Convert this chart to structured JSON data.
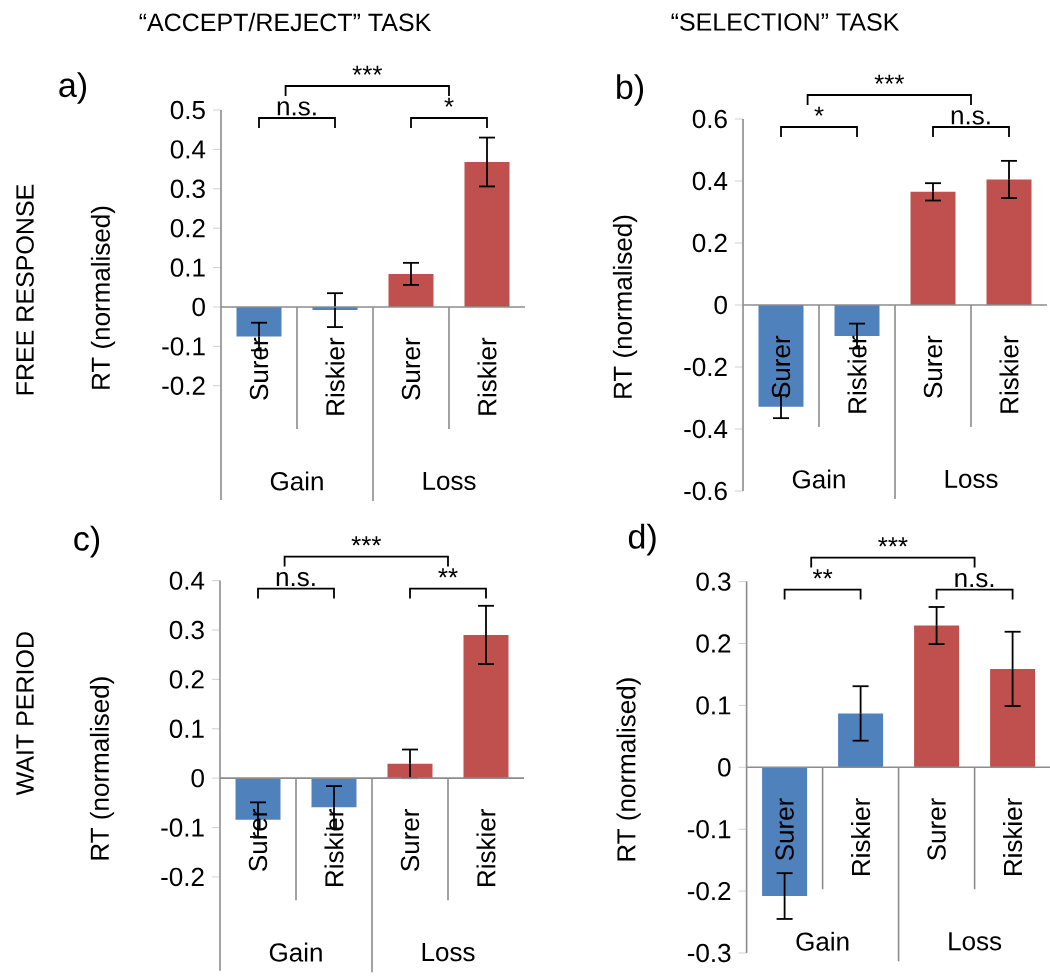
{
  "chart_data": [
    {
      "type": "bar",
      "title": "a)",
      "subtitle": "“ACCEPT/REJECT” TASK",
      "ylabel": "RT (normalised)",
      "categories": [
        "Surer",
        "Riskier",
        "Surer",
        "Riskier"
      ],
      "values": [
        -0.075,
        -0.008,
        0.084,
        0.368
      ],
      "errors": [
        0.035,
        0.043,
        0.028,
        0.062
      ],
      "colors": [
        "#4f81bd",
        "#4f81bd",
        "#c0504d",
        "#c0504d"
      ],
      "ylim": [
        -0.49,
        0.5
      ],
      "yticks": [
        -0.2,
        -0.1,
        0,
        0.1,
        0.2,
        0.3,
        0.4,
        0.5
      ],
      "annotations": [
        "***",
        "n.s.",
        "*",
        "Gain",
        "Loss",
        "FREE RESPONSE"
      ]
    },
    {
      "type": "bar",
      "title": "b)",
      "subtitle": "“SELECTION” TASK",
      "ylabel": "RT (normalised)",
      "categories": [
        "Surer",
        "Riskier",
        "Surer",
        "Riskier"
      ],
      "values": [
        -0.328,
        -0.1,
        0.365,
        0.405
      ],
      "errors": [
        0.037,
        0.04,
        0.028,
        0.06
      ],
      "colors": [
        "#4f81bd",
        "#4f81bd",
        "#c0504d",
        "#c0504d"
      ],
      "ylim": [
        -0.6,
        0.6
      ],
      "yticks": [
        -0.6,
        -0.4,
        -0.2,
        0,
        0.2,
        0.4,
        0.6
      ],
      "annotations": [
        "***",
        "*",
        "n.s.",
        "Gain",
        "Loss"
      ]
    },
    {
      "type": "bar",
      "title": "c)",
      "ylabel": "RT (normalised)",
      "categories": [
        "Surer",
        "Riskier",
        "Surer",
        "Riskier"
      ],
      "values": [
        -0.084,
        -0.059,
        0.029,
        0.29
      ],
      "errors": [
        0.035,
        0.043,
        0.029,
        0.059
      ],
      "colors": [
        "#4f81bd",
        "#4f81bd",
        "#c0504d",
        "#c0504d"
      ],
      "ylim": [
        -0.39,
        0.4
      ],
      "yticks": [
        -0.2,
        -0.1,
        0,
        0.1,
        0.2,
        0.3,
        0.4
      ],
      "annotations": [
        "***",
        "n.s.",
        "**",
        "Gain",
        "Loss",
        "WAIT PERIOD"
      ]
    },
    {
      "type": "bar",
      "title": "d)",
      "ylabel": "RT (normalised)",
      "categories": [
        "Surer",
        "Riskier",
        "Surer",
        "Riskier"
      ],
      "values": [
        -0.208,
        0.087,
        0.229,
        0.159
      ],
      "errors": [
        0.037,
        0.044,
        0.03,
        0.06
      ],
      "colors": [
        "#4f81bd",
        "#4f81bd",
        "#c0504d",
        "#c0504d"
      ],
      "ylim": [
        -0.3,
        0.3
      ],
      "yticks": [
        -0.3,
        -0.2,
        -0.1,
        0,
        0.1,
        0.2,
        0.3
      ],
      "annotations": [
        "***",
        "**",
        "n.s.",
        "Gain",
        "Loss"
      ]
    }
  ]
}
